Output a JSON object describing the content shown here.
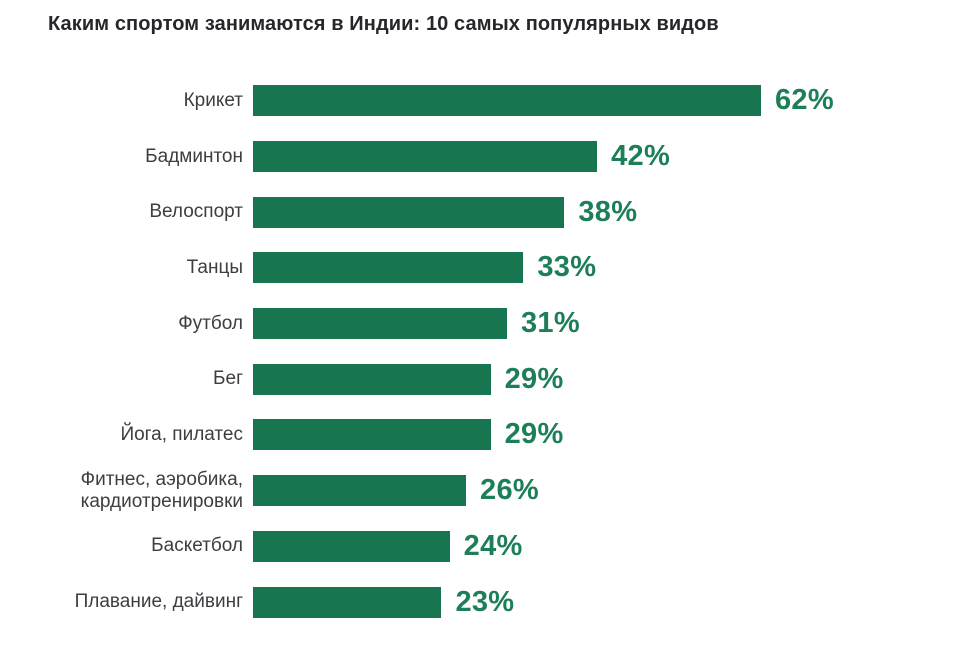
{
  "title": "Каким спортом занимаются в Индии: 10 самых популярных видов",
  "colors": {
    "background": "#ffffff",
    "bar": "#17754f",
    "value_text": "#1d7f57",
    "label_text": "#3d3d42",
    "title_text": "#26262b"
  },
  "chart_data": {
    "type": "bar",
    "orientation": "horizontal",
    "title": "Каким спортом занимаются в Индии: 10 самых популярных видов",
    "categories": [
      "Крикет",
      "Бадминтон",
      "Велоспорт",
      "Танцы",
      "Футбол",
      "Бег",
      "Йога, пилатес",
      "Фитнес, аэробика,\nкардиотренировки",
      "Баскетбол",
      "Плавание, дайвинг"
    ],
    "values": [
      62,
      42,
      38,
      33,
      31,
      29,
      29,
      26,
      24,
      23
    ],
    "value_labels": [
      "62%",
      "42%",
      "38%",
      "33%",
      "31%",
      "29%",
      "29%",
      "26%",
      "24%",
      "23%"
    ],
    "unit": "%",
    "xlim": [
      0,
      62
    ],
    "grid": false,
    "legend": null,
    "value_label_position": "end-of-bar"
  }
}
